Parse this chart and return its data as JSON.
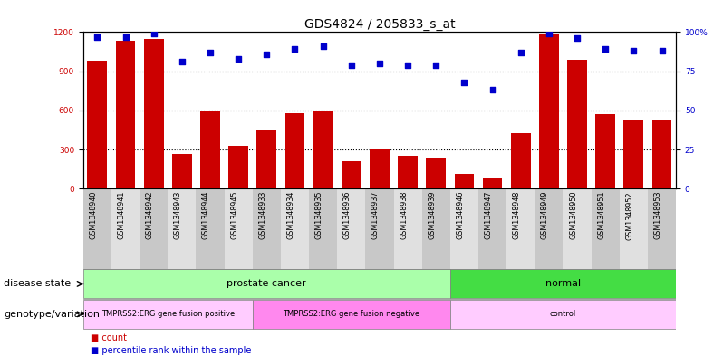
{
  "title": "GDS4824 / 205833_s_at",
  "samples": [
    "GSM1348940",
    "GSM1348941",
    "GSM1348942",
    "GSM1348943",
    "GSM1348944",
    "GSM1348945",
    "GSM1348933",
    "GSM1348934",
    "GSM1348935",
    "GSM1348936",
    "GSM1348937",
    "GSM1348938",
    "GSM1348939",
    "GSM1348946",
    "GSM1348947",
    "GSM1348948",
    "GSM1348949",
    "GSM1348950",
    "GSM1348951",
    "GSM1348952",
    "GSM1348953"
  ],
  "counts": [
    980,
    1130,
    1150,
    265,
    590,
    325,
    455,
    575,
    600,
    210,
    310,
    250,
    240,
    110,
    85,
    425,
    1185,
    990,
    570,
    520,
    530
  ],
  "percentiles": [
    97,
    97,
    99,
    81,
    87,
    83,
    86,
    89,
    91,
    79,
    80,
    79,
    79,
    68,
    63,
    87,
    99,
    96,
    89,
    88,
    88
  ],
  "ylim_left": [
    0,
    1200
  ],
  "ylim_right": [
    0,
    100
  ],
  "yticks_left": [
    0,
    300,
    600,
    900,
    1200
  ],
  "yticks_right": [
    0,
    25,
    50,
    75,
    100
  ],
  "ytick_labels_right": [
    "0",
    "25",
    "50",
    "75",
    "100%"
  ],
  "bar_color": "#cc0000",
  "dot_color": "#0000cc",
  "disease_state_groups": [
    {
      "label": "prostate cancer",
      "start": 0,
      "end": 13,
      "color": "#aaffaa"
    },
    {
      "label": "normal",
      "start": 13,
      "end": 21,
      "color": "#44dd44"
    }
  ],
  "genotype_groups": [
    {
      "label": "TMPRSS2:ERG gene fusion positive",
      "start": 0,
      "end": 6,
      "color": "#ffccff"
    },
    {
      "label": "TMPRSS2:ERG gene fusion negative",
      "start": 6,
      "end": 13,
      "color": "#ff88ee"
    },
    {
      "label": "control",
      "start": 13,
      "end": 21,
      "color": "#ffccff"
    }
  ],
  "legend_count_label": "count",
  "legend_pct_label": "percentile rank within the sample",
  "disease_state_label": "disease state",
  "genotype_label": "genotype/variation",
  "title_fontsize": 10,
  "axis_fontsize": 8,
  "tick_fontsize": 6.5,
  "annotation_fontsize": 8
}
